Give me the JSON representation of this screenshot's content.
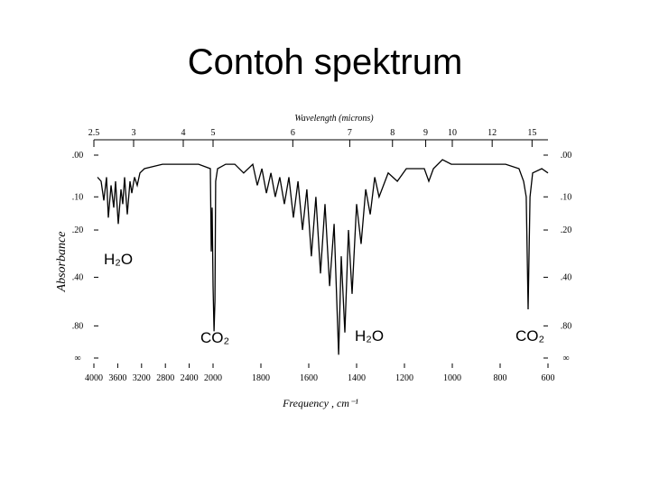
{
  "title": "Contoh spektrum",
  "chart_data": {
    "type": "line",
    "x_label": "Frequency , cm⁻¹",
    "x2_label": "Wavelength (microns)",
    "y_label": "Absorbance",
    "yscale": "transmittance",
    "x": [
      3939,
      3879,
      3833,
      3788,
      3758,
      3712,
      3667,
      3636,
      3591,
      3545,
      3515,
      3485,
      3439,
      3394,
      3364,
      3318,
      3273,
      3227,
      3152,
      2848,
      2545,
      2242,
      2045,
      2030,
      2015,
      2000,
      1996,
      1992,
      1989,
      1981,
      1947,
      1909,
      1872,
      1834,
      1815,
      1796,
      1777,
      1758,
      1740,
      1721,
      1702,
      1683,
      1664,
      1645,
      1626,
      1608,
      1589,
      1570,
      1551,
      1532,
      1513,
      1494,
      1475,
      1464,
      1449,
      1434,
      1419,
      1400,
      1381,
      1362,
      1343,
      1324,
      1306,
      1268,
      1230,
      1192,
      1155,
      1117,
      1098,
      1079,
      1041,
      1004,
      928,
      853,
      777,
      721,
      702,
      691,
      683,
      675,
      664,
      626,
      600
    ],
    "series": [
      {
        "color": "#000000",
        "values": [
          0.05,
          0.06,
          0.11,
          0.05,
          0.16,
          0.07,
          0.13,
          0.06,
          0.18,
          0.08,
          0.12,
          0.05,
          0.15,
          0.06,
          0.09,
          0.05,
          0.07,
          0.04,
          0.03,
          0.02,
          0.02,
          0.02,
          0.03,
          0.28,
          0.13,
          0.45,
          0.88,
          0.55,
          0.06,
          0.03,
          0.02,
          0.02,
          0.04,
          0.02,
          0.07,
          0.03,
          0.09,
          0.04,
          0.1,
          0.05,
          0.12,
          0.05,
          0.16,
          0.06,
          0.2,
          0.08,
          0.3,
          0.1,
          0.38,
          0.12,
          0.45,
          0.18,
          1.8,
          0.3,
          0.9,
          0.2,
          0.5,
          0.12,
          0.25,
          0.08,
          0.15,
          0.05,
          0.1,
          0.04,
          0.06,
          0.03,
          0.03,
          0.03,
          0.06,
          0.03,
          0.01,
          0.02,
          0.02,
          0.02,
          0.02,
          0.03,
          0.06,
          0.1,
          0.62,
          0.1,
          0.04,
          0.03,
          0.04
        ]
      }
    ],
    "xlim": [
      4000,
      600
    ],
    "x_scale_break": 2000,
    "xticks": [
      4000,
      3600,
      3200,
      2800,
      2400,
      2000,
      1800,
      1600,
      1400,
      1200,
      1000,
      800,
      600
    ],
    "x2ticks": [
      2.5,
      3,
      4,
      5,
      6,
      7,
      8,
      9,
      10,
      12,
      15
    ],
    "ylim": [
      0,
      null
    ],
    "yticks": [
      {
        "value": 0,
        "label": ".00"
      },
      {
        "value": 0.1,
        "label": ".10"
      },
      {
        "value": 0.2,
        "label": ".20"
      },
      {
        "value": 0.4,
        "label": ".40"
      },
      {
        "value": 0.8,
        "label": ".80"
      },
      {
        "value": null,
        "label": "∞"
      }
    ],
    "annotations": [
      "H₂O",
      "CO₂",
      "H₂O",
      "CO₂"
    ]
  }
}
